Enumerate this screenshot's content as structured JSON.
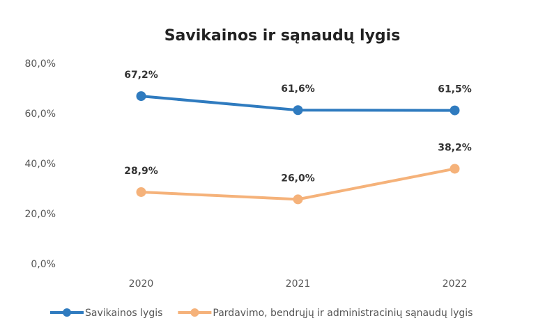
{
  "chart_data": {
    "type": "line",
    "title": "Savikainos ir sąnaudų lygis",
    "categories": [
      "2020",
      "2021",
      "2022"
    ],
    "series": [
      {
        "name": "Savikainos lygis",
        "color": "#2f7bbf",
        "values": [
          67.2,
          61.6,
          61.5
        ],
        "value_labels": [
          "67,2%",
          "61,6%",
          "61,5%"
        ]
      },
      {
        "name": "Pardavimo, bendrųjų ir administracinių sąnaudų lygis",
        "color": "#f5b27a",
        "values": [
          28.9,
          26.0,
          38.2
        ],
        "value_labels": [
          "28,9%",
          "26,0%",
          "38,2%"
        ]
      }
    ],
    "ylim": [
      0,
      80
    ],
    "yticks": [
      {
        "value": 0,
        "label": "0,0%"
      },
      {
        "value": 20,
        "label": "20,0%"
      },
      {
        "value": 40,
        "label": "40,0%"
      },
      {
        "value": 60,
        "label": "60,0%"
      },
      {
        "value": 80,
        "label": "80,0%"
      }
    ],
    "grid": false,
    "legend": "bottom"
  }
}
